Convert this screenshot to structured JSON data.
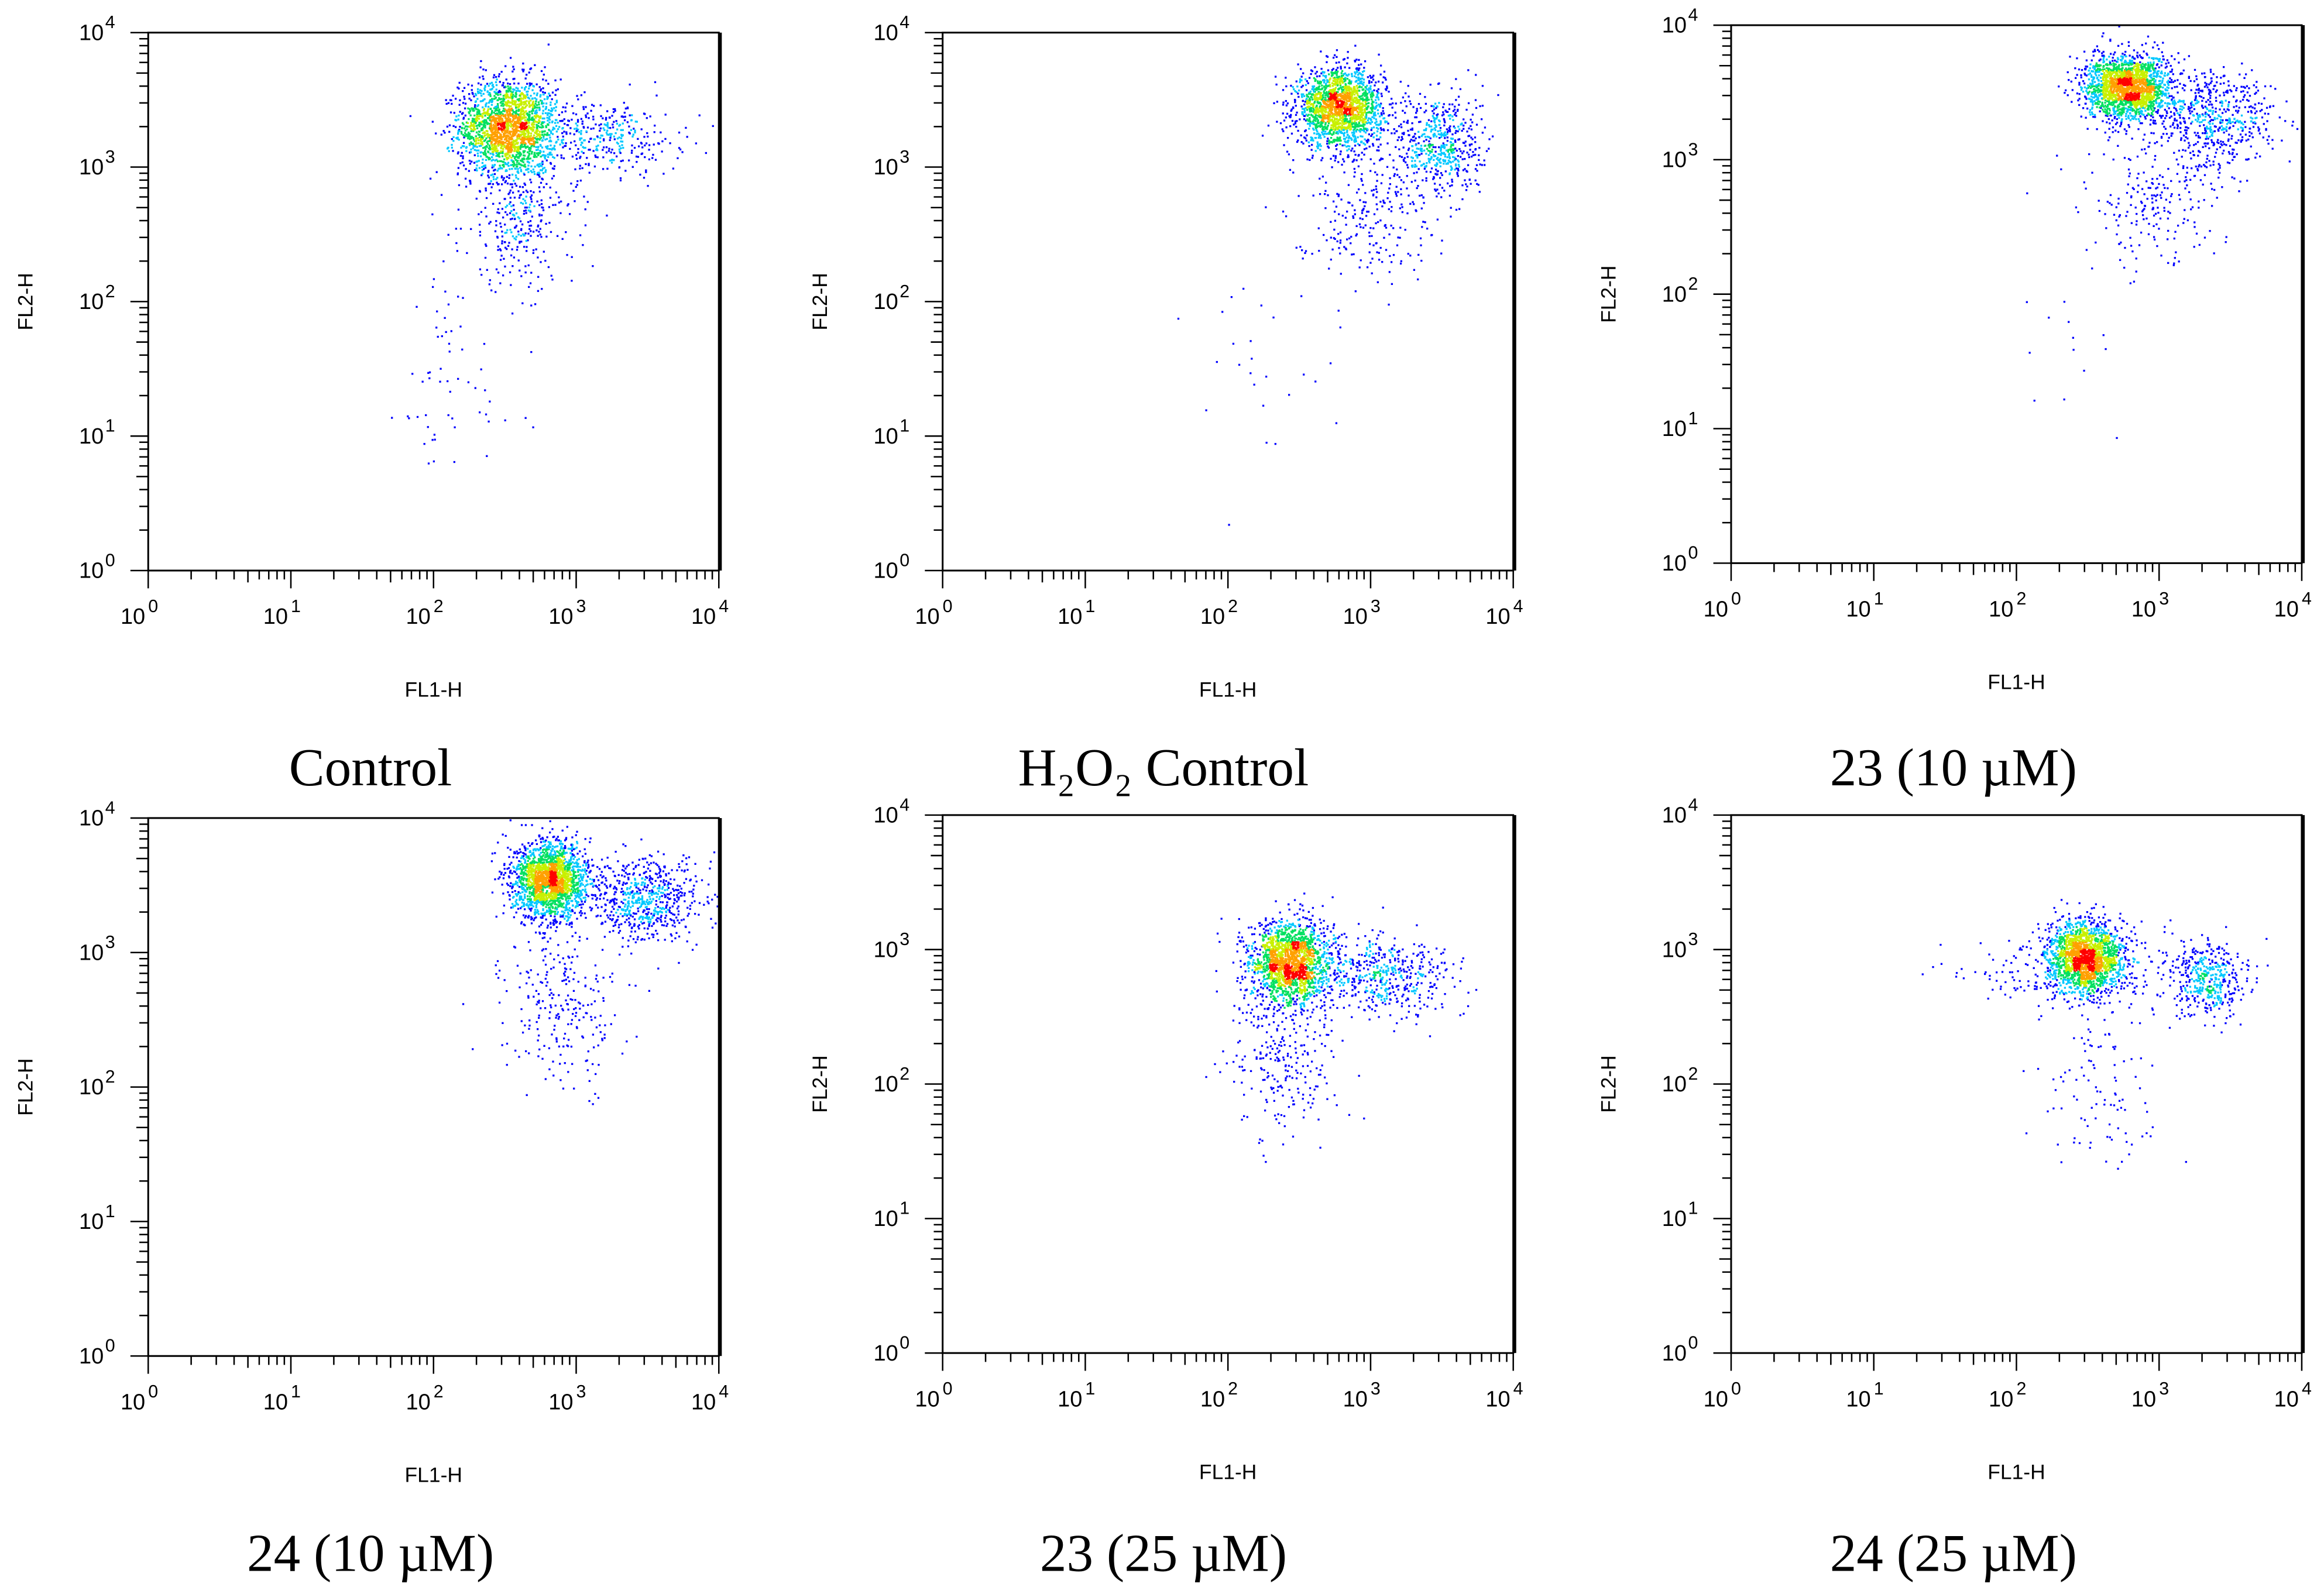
{
  "chart_data": [
    {
      "type": "scatter",
      "subtype": "density-dot-plot",
      "caption": "Control",
      "xlabel": "FL1-H",
      "ylabel": "FL2-H",
      "xscale": "log",
      "yscale": "log",
      "xlim": [
        1,
        10000
      ],
      "ylim": [
        1,
        10000
      ],
      "populations": [
        {
          "x": 330,
          "y": 2000,
          "sx_dec": 0.17,
          "sy_dec": 0.18,
          "events": 2000
        },
        {
          "x": 1500,
          "y": 1700,
          "sx_dec": 0.28,
          "sy_dec": 0.14,
          "events": 350
        },
        {
          "x": 400,
          "y": 400,
          "sx_dec": 0.2,
          "sy_dec": 0.25,
          "events": 300
        },
        {
          "x": 120,
          "y": 25,
          "sx_dec": 0.25,
          "sy_dec": 0.45,
          "events": 60
        }
      ]
    },
    {
      "type": "scatter",
      "subtype": "density-dot-plot",
      "caption": "H₂O₂ Control",
      "xlabel": "FL1-H",
      "ylabel": "FL2-H",
      "xscale": "log",
      "yscale": "log",
      "xlim": [
        1,
        10000
      ],
      "ylim": [
        1,
        10000
      ],
      "populations": [
        {
          "x": 600,
          "y": 2800,
          "sx_dec": 0.15,
          "sy_dec": 0.14,
          "events": 1900
        },
        {
          "x": 3000,
          "y": 1500,
          "sx_dec": 0.15,
          "sy_dec": 0.2,
          "events": 550
        },
        {
          "x": 900,
          "y": 500,
          "sx_dec": 0.25,
          "sy_dec": 0.25,
          "events": 250
        },
        {
          "x": 150,
          "y": 40,
          "sx_dec": 0.25,
          "sy_dec": 0.4,
          "events": 25
        }
      ]
    },
    {
      "type": "scatter",
      "subtype": "density-dot-plot",
      "caption": "23 (10 µM)",
      "xlabel": "FL1-H",
      "ylabel": "FL2-H",
      "xscale": "log",
      "yscale": "log",
      "xlim": [
        1,
        10000
      ],
      "ylim": [
        1,
        10000
      ],
      "populations": [
        {
          "x": 600,
          "y": 3500,
          "sx_dec": 0.15,
          "sy_dec": 0.12,
          "events": 2000
        },
        {
          "x": 2500,
          "y": 2000,
          "sx_dec": 0.2,
          "sy_dec": 0.18,
          "events": 550
        },
        {
          "x": 900,
          "y": 500,
          "sx_dec": 0.25,
          "sy_dec": 0.25,
          "events": 220
        },
        {
          "x": 200,
          "y": 40,
          "sx_dec": 0.2,
          "sy_dec": 0.3,
          "events": 15
        }
      ]
    },
    {
      "type": "scatter",
      "subtype": "density-dot-plot",
      "caption": "24 (10 µM)",
      "xlabel": "FL1-H",
      "ylabel": "FL2-H",
      "xscale": "log",
      "yscale": "log",
      "xlim": [
        1,
        10000
      ],
      "ylim": [
        1,
        10000
      ],
      "populations": [
        {
          "x": 650,
          "y": 3500,
          "sx_dec": 0.13,
          "sy_dec": 0.14,
          "events": 2000
        },
        {
          "x": 3000,
          "y": 2500,
          "sx_dec": 0.2,
          "sy_dec": 0.15,
          "events": 650
        },
        {
          "x": 800,
          "y": 400,
          "sx_dec": 0.2,
          "sy_dec": 0.3,
          "events": 250
        }
      ]
    },
    {
      "type": "scatter",
      "subtype": "density-dot-plot",
      "caption": "23 (25 µM)",
      "xlabel": "FL1-H",
      "ylabel": "FL2-H",
      "xscale": "log",
      "yscale": "log",
      "xlim": [
        1,
        10000
      ],
      "ylim": [
        1,
        10000
      ],
      "populations": [
        {
          "x": 270,
          "y": 800,
          "sx_dec": 0.14,
          "sy_dec": 0.16,
          "events": 1800
        },
        {
          "x": 1200,
          "y": 650,
          "sx_dec": 0.25,
          "sy_dec": 0.15,
          "events": 500
        },
        {
          "x": 250,
          "y": 150,
          "sx_dec": 0.2,
          "sy_dec": 0.3,
          "events": 250
        }
      ]
    },
    {
      "type": "scatter",
      "subtype": "density-dot-plot",
      "caption": "24 (25 µM)",
      "xlabel": "FL1-H",
      "ylabel": "FL2-H",
      "xscale": "log",
      "yscale": "log",
      "xlim": [
        1,
        10000
      ],
      "ylim": [
        1,
        10000
      ],
      "populations": [
        {
          "x": 300,
          "y": 900,
          "sx_dec": 0.13,
          "sy_dec": 0.13,
          "events": 1800
        },
        {
          "x": 2200,
          "y": 600,
          "sx_dec": 0.12,
          "sy_dec": 0.13,
          "events": 400
        },
        {
          "x": 300,
          "y": 700,
          "sx_dec": 0.45,
          "sy_dec": 0.15,
          "events": 300
        },
        {
          "x": 400,
          "y": 100,
          "sx_dec": 0.2,
          "sy_dec": 0.3,
          "events": 100
        }
      ]
    }
  ],
  "tick_base": "10",
  "tick_exponents": [
    "0",
    "1",
    "2",
    "3",
    "4"
  ],
  "density_colors": [
    "#0000ff",
    "#00c8ff",
    "#00e060",
    "#c8f000",
    "#ffa000",
    "#ff0000"
  ]
}
